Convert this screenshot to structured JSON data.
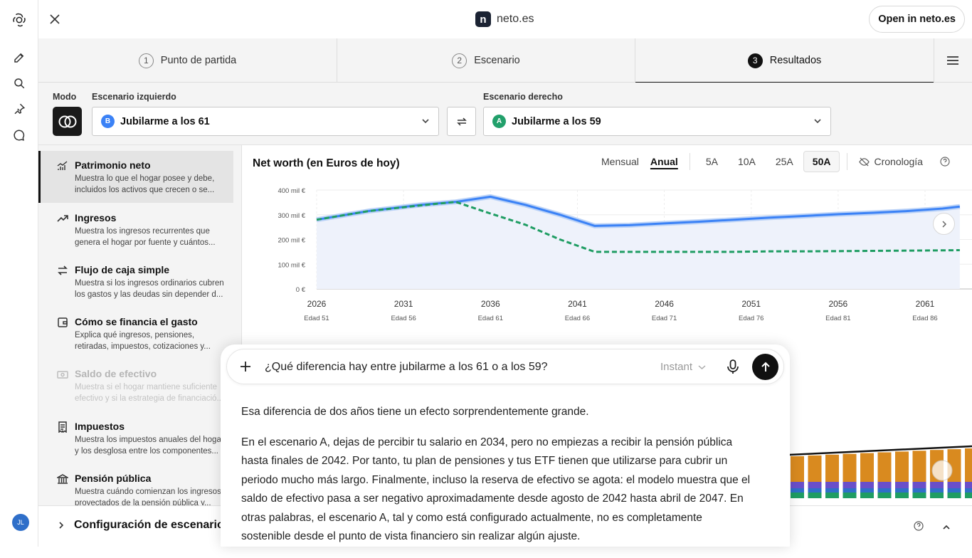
{
  "top": {
    "site_title": "neto.es",
    "logo_letter": "n",
    "open_button": "Open in neto.es"
  },
  "steps": [
    {
      "num": "1",
      "label": "Punto de partida"
    },
    {
      "num": "2",
      "label": "Escenario"
    },
    {
      "num": "3",
      "label": "Resultados"
    }
  ],
  "controls": {
    "mode_label": "Modo",
    "left_label": "Escenario izquierdo",
    "right_label": "Escenario derecho",
    "left_badge": "B",
    "left_value": "Jubilarme a los 61",
    "right_badge": "A",
    "right_value": "Jubilarme a los 59",
    "left_badge_color": "#3b82f6",
    "right_badge_color": "#22a06b"
  },
  "metrics": [
    {
      "title": "Patrimonio neto",
      "desc1": "Muestra lo que el hogar posee y debe,",
      "desc2": "incluidos los activos que crecen o se...",
      "icon": "chart-line-icon"
    },
    {
      "title": "Ingresos",
      "desc1": "Muestra los ingresos recurrentes que",
      "desc2": "genera el hogar por fuente y cuántos...",
      "icon": "trend-up-icon"
    },
    {
      "title": "Flujo de caja simple",
      "desc1": "Muestra si los ingresos ordinarios cubren",
      "desc2": "los gastos y las deudas sin depender d...",
      "icon": "arrows-swap-icon"
    },
    {
      "title": "Cómo se financia el gasto",
      "desc1": "Explica qué ingresos, pensiones,",
      "desc2": "retiradas, impuestos, cotizaciones y...",
      "icon": "wallet-icon"
    },
    {
      "title": "Saldo de efectivo",
      "desc1": "Muestra si el hogar mantiene suficiente",
      "desc2": "efectivo y si la estrategia de financiació...",
      "icon": "cash-icon"
    },
    {
      "title": "Impuestos",
      "desc1": "Muestra los impuestos anuales del hogar",
      "desc2": "y los desglosa entre los componentes...",
      "icon": "receipt-icon"
    },
    {
      "title": "Pensión pública",
      "desc1": "Muestra cuándo comienzan los ingresos",
      "desc2": "proyectados de la pensión pública y...",
      "icon": "bank-icon"
    }
  ],
  "chart_panel": {
    "title": "Net worth (en Euros de hoy)",
    "mensual": "Mensual",
    "anual": "Anual",
    "ranges": [
      "5A",
      "10A",
      "25A",
      "50A"
    ],
    "selected_range": "50A",
    "cronologia": "Cronología"
  },
  "chart_data": {
    "type": "line",
    "title": "Net worth (en Euros de hoy)",
    "x": [
      2026,
      2029,
      2032,
      2034,
      2036,
      2038,
      2040,
      2042,
      2044,
      2046,
      2048,
      2050,
      2052,
      2054,
      2056,
      2058,
      2060,
      2062,
      2063
    ],
    "x_ticks": [
      2026,
      2031,
      2036,
      2041,
      2046,
      2051,
      2056,
      2061
    ],
    "x_tick_sublabels": [
      "Edad 51",
      "Edad 56",
      "Edad 61",
      "Edad 66",
      "Edad 71",
      "Edad 76",
      "Edad 81",
      "Edad 86"
    ],
    "y_ticks": [
      "0 €",
      "100 mil €",
      "200 mil €",
      "300 mil €",
      "400 mil €"
    ],
    "ylim": [
      0,
      400
    ],
    "series": [
      {
        "name": "B",
        "color": "#3b82f6",
        "style": "solid",
        "values": [
          280,
          315,
          340,
          352,
          373,
          340,
          300,
          255,
          258,
          265,
          272,
          280,
          288,
          295,
          302,
          308,
          315,
          325,
          333
        ]
      },
      {
        "name": "A",
        "color": "#1f9d63",
        "style": "dashed",
        "values": [
          280,
          315,
          338,
          352,
          305,
          260,
          200,
          150,
          150,
          150,
          150,
          150,
          152,
          152,
          153,
          154,
          155,
          156,
          157
        ]
      }
    ],
    "grid": true
  },
  "bottom": {
    "config_label": "Configuración de escenario"
  },
  "chat": {
    "query": "¿Qué diferencia hay entre jubilarme a los 61 o a los 59?",
    "model": "Instant",
    "answer_p1": "Esa diferencia de dos años tiene un efecto sorprendentemente grande.",
    "answer_p2": "En el escenario A, dejas de percibir tu salario en 2034, pero no empiezas a recibir la pensión pública hasta finales de 2042. Por tanto, tu plan de pensiones y tus ETF tienen que utilizarse para cubrir un periodo mucho más largo. Finalmente, incluso la reserva de efectivo se agota: el modelo muestra que el saldo de efectivo pasa a ser negativo aproximadamente desde agosto de 2042 hasta abril de 2047. En otras palabras, el escenario A, tal y como está configurado actualmente, no es completamente sostenible desde el punto de vista financiero sin realizar algún ajuste."
  },
  "user": {
    "initials": "JL"
  }
}
